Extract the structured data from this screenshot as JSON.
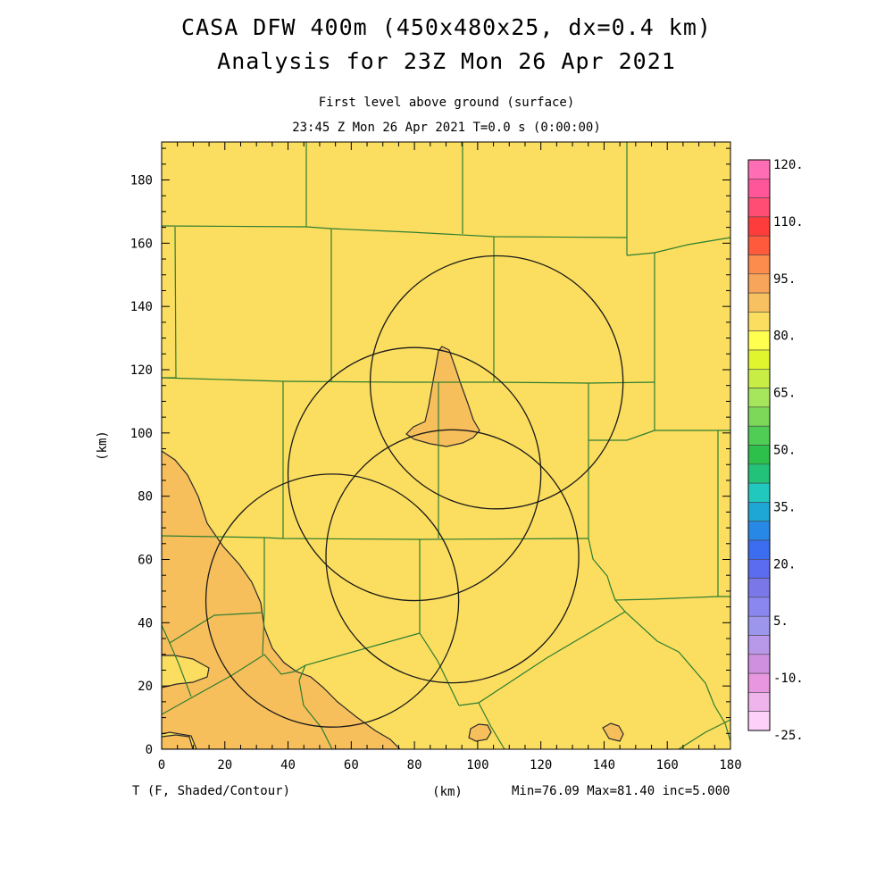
{
  "title": {
    "line1": "CASA DFW 400m (450x480x25, dx=0.4 km)",
    "line2": "Analysis for 23Z Mon 26 Apr 2021"
  },
  "subtitle": {
    "line1": "First level above ground (surface)",
    "line2": "23:45 Z Mon 26 Apr 2021   T=0.0 s (0:00:00)"
  },
  "map": {
    "x_range_km": [
      0,
      180
    ],
    "y_range_km": [
      0,
      192
    ],
    "x_ticks": [
      0,
      20,
      40,
      60,
      80,
      100,
      120,
      140,
      160,
      180
    ],
    "y_ticks": [
      0,
      20,
      40,
      60,
      80,
      100,
      120,
      140,
      160,
      180
    ],
    "x_axis_label": "(km)",
    "y_axis_label": "(km)",
    "background_color": "#fbde5f",
    "warm_region_color": "#f7bf5b",
    "county_line_color": "#2e7d32",
    "radar_ring_radius_km": 40,
    "radar_rings_km": [
      {
        "center": [
          106,
          116
        ]
      },
      {
        "center": [
          80,
          87
        ]
      },
      {
        "center": [
          54,
          47
        ]
      },
      {
        "center": [
          92,
          61
        ]
      }
    ],
    "variable_label": "T (F, Shaded/Contour)",
    "stats_label": "Min=76.09 Max=81.40 inc=5.000"
  },
  "colorbar": {
    "labels": [
      "120.",
      "110.",
      "95.",
      "80.",
      "65.",
      "50.",
      "35.",
      "20.",
      "5.",
      "-10.",
      "-25."
    ],
    "colors_top_to_bottom": [
      "#ff6eb4",
      "#ff5599",
      "#ff4d73",
      "#ff3c3c",
      "#ff5a3c",
      "#fb8c4e",
      "#f7a55a",
      "#f7c060",
      "#fbde5f",
      "#ffff50",
      "#e0f52e",
      "#c8ee46",
      "#a6e65c",
      "#7dd85a",
      "#50cd54",
      "#2dc14c",
      "#22c27a",
      "#20c8be",
      "#1ea6d5",
      "#2888e6",
      "#3c6cf0",
      "#5c6cf0",
      "#7a78e8",
      "#8a88f0",
      "#9c96ec",
      "#b898e8",
      "#d090e0",
      "#e896e0",
      "#f0b4ec",
      "#fcd0f8"
    ]
  }
}
